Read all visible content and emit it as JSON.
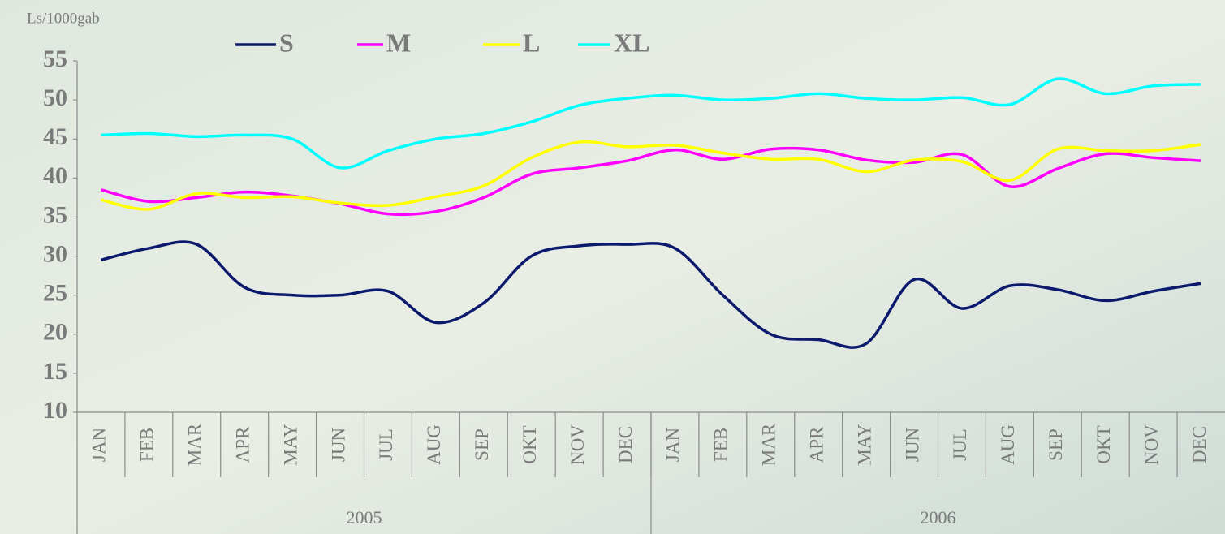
{
  "chart_data": {
    "type": "line",
    "y_axis_label": "Ls/1000gab",
    "categories": [
      "JAN",
      "FEB",
      "MAR",
      "APR",
      "MAY",
      "JUN",
      "JUL",
      "AUG",
      "SEP",
      "OKT",
      "NOV",
      "DEC",
      "JAN",
      "FEB",
      "MAR",
      "APR",
      "MAY",
      "JUN",
      "JUL",
      "AUG",
      "SEP",
      "OKT",
      "NOV",
      "DEC"
    ],
    "category_groups": [
      "2005",
      "2006"
    ],
    "ylim": [
      10,
      55
    ],
    "yticks": [
      10,
      15,
      20,
      25,
      30,
      35,
      40,
      45,
      50,
      55
    ],
    "grid": false,
    "legend": "top",
    "series": [
      {
        "name": "S",
        "color": "#0c1a6e",
        "values": [
          29.5,
          31,
          31.5,
          26,
          25,
          25,
          25.5,
          21.5,
          24,
          30,
          31.3,
          31.5,
          31,
          25,
          20,
          19.3,
          18.8,
          27,
          23.3,
          26.2,
          25.7,
          24.3,
          25.5,
          26.5
        ]
      },
      {
        "name": "M",
        "color": "#ff00ff",
        "values": [
          38.5,
          37,
          37.5,
          38.2,
          37.7,
          36.7,
          35.4,
          35.7,
          37.5,
          40.5,
          41.3,
          42.2,
          43.6,
          42.4,
          43.7,
          43.6,
          42.3,
          42,
          43,
          38.9,
          41.2,
          43.1,
          42.6,
          42.2
        ]
      },
      {
        "name": "L",
        "color": "#ffff00",
        "values": [
          37.2,
          36,
          38,
          37.5,
          37.6,
          36.8,
          36.5,
          37.6,
          39,
          42.6,
          44.6,
          44,
          44.2,
          43.2,
          42.4,
          42.4,
          40.8,
          42.3,
          42.1,
          39.7,
          43.7,
          43.5,
          43.5,
          44.3
        ]
      },
      {
        "name": "XL",
        "color": "#00ffff",
        "values": [
          45.5,
          45.7,
          45.3,
          45.5,
          45,
          41.3,
          43.5,
          45,
          45.7,
          47.2,
          49.3,
          50.2,
          50.6,
          50,
          50.2,
          50.8,
          50.2,
          50,
          50.3,
          49.4,
          52.7,
          50.8,
          51.8,
          52
        ]
      }
    ]
  }
}
